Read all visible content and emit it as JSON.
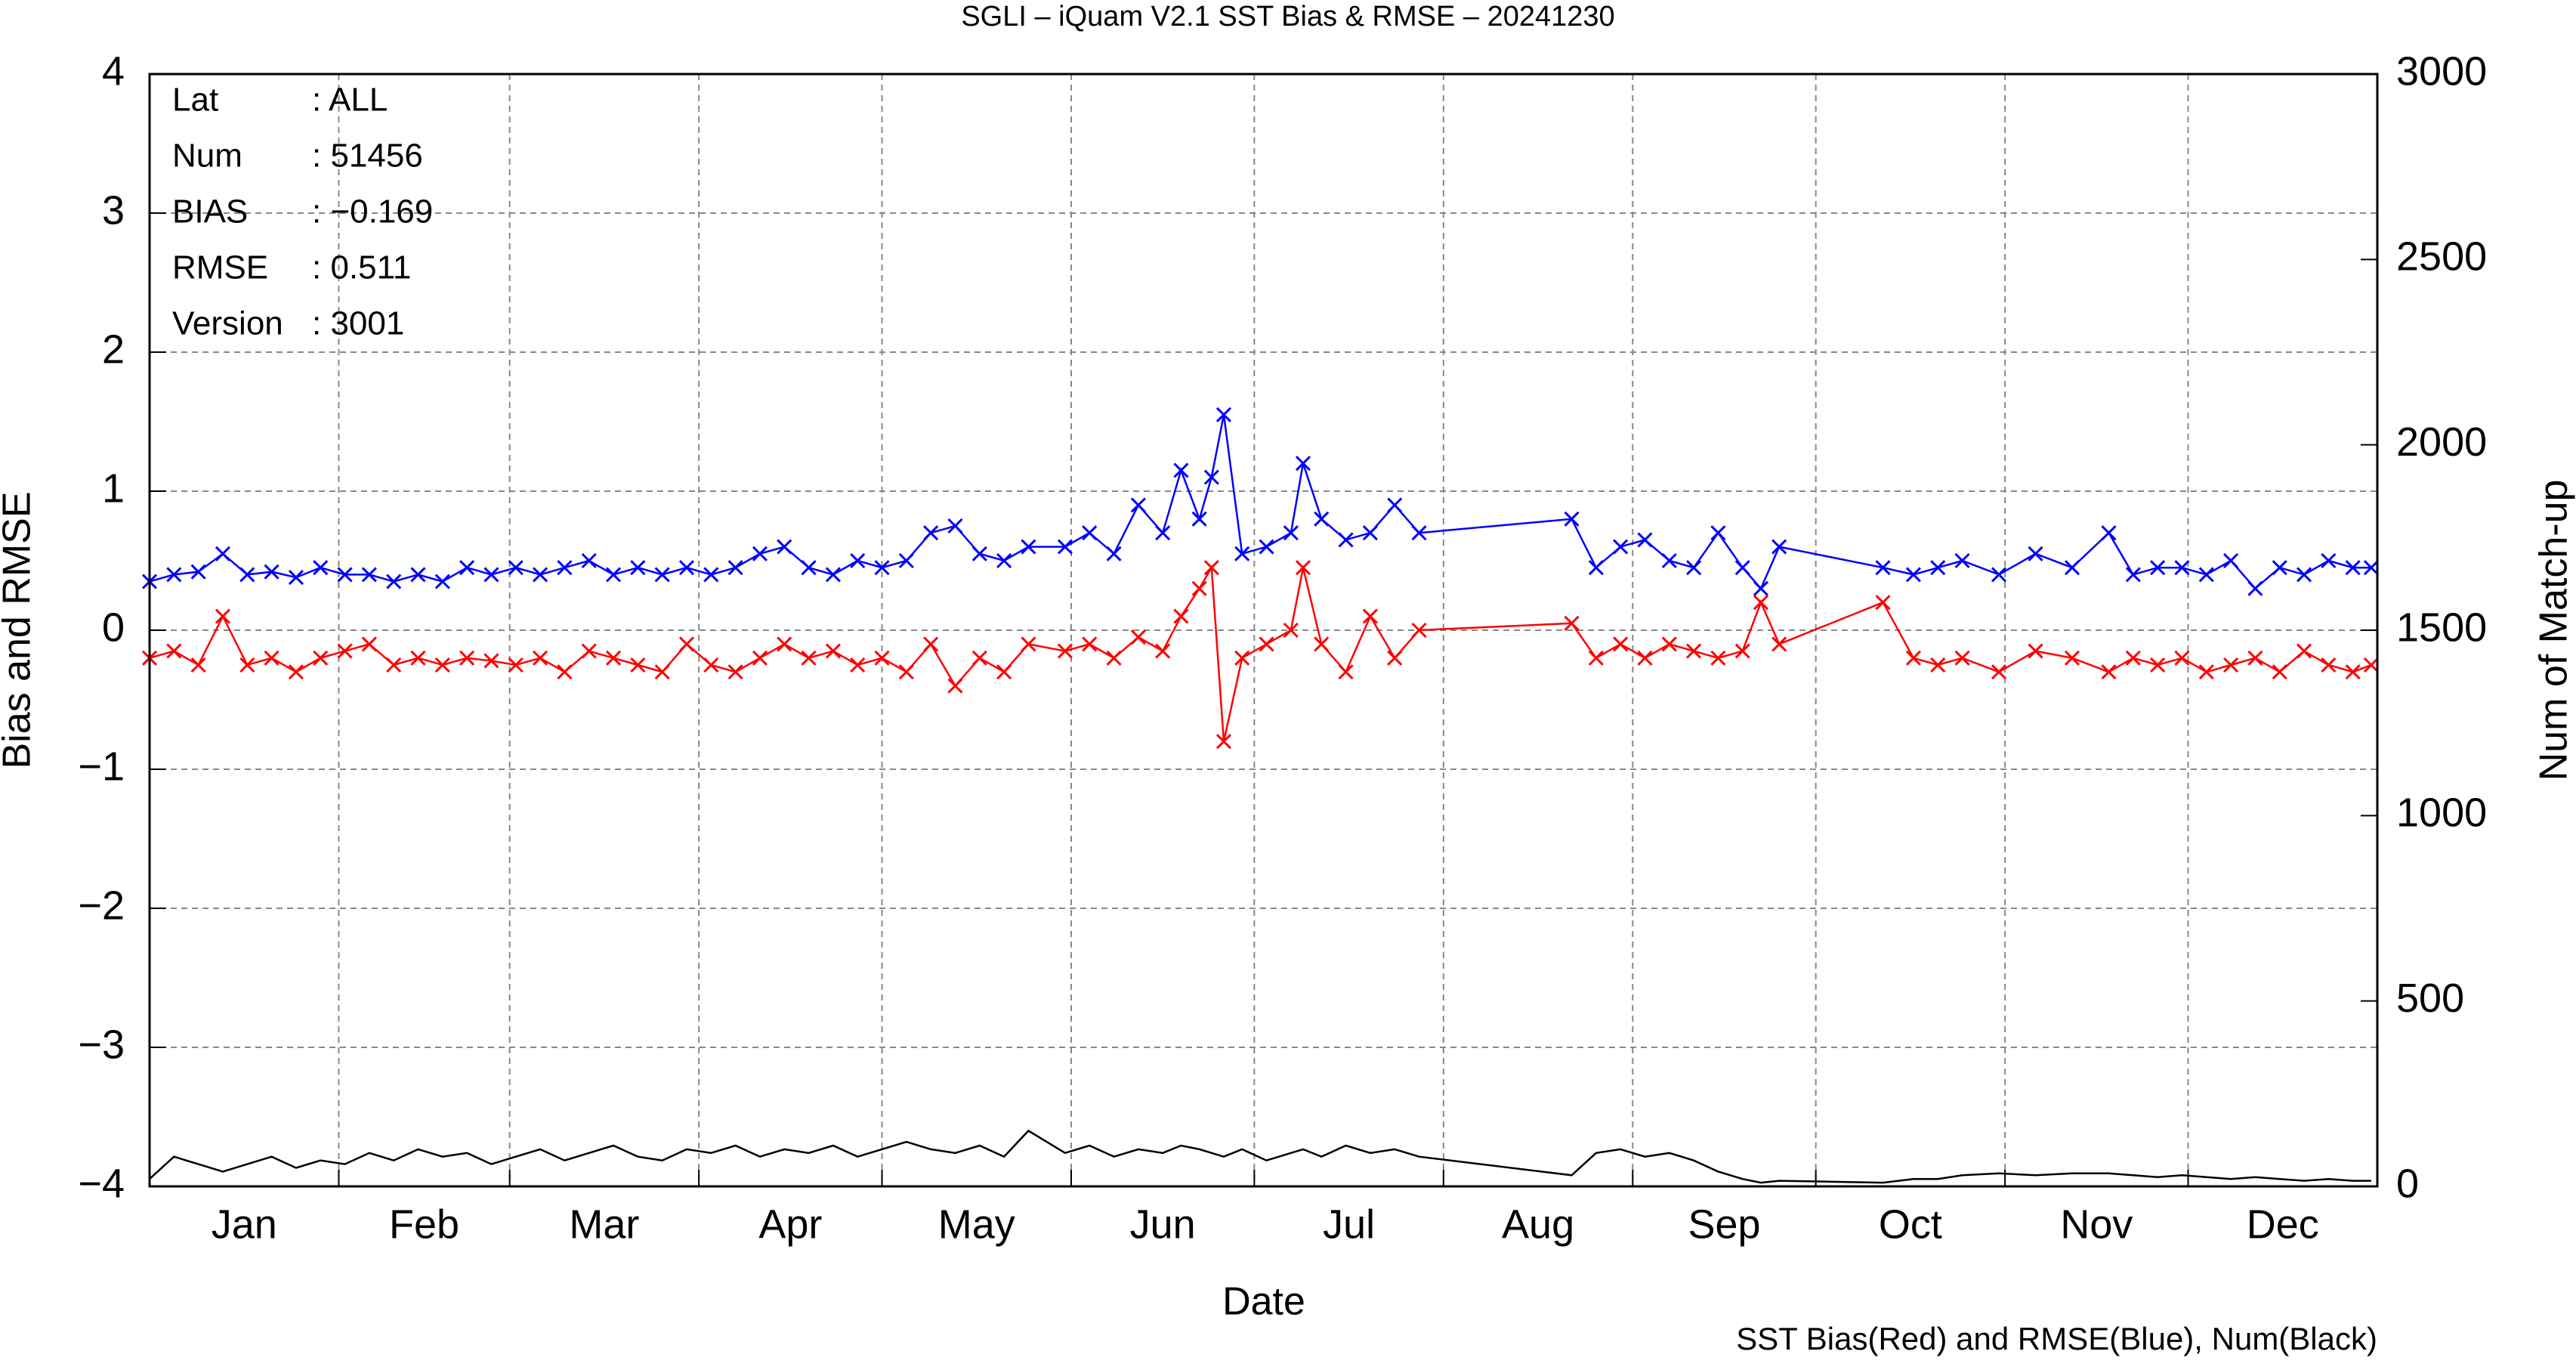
{
  "chart_data": {
    "type": "line",
    "title": "SGLI – iQuam V2.1 SST Bias & RMSE  – 20241230",
    "xlabel": "Date",
    "ylabel": "Bias and RMSE",
    "y2label": "Num of Match-up",
    "footnote": "SST Bias(Red) and RMSE(Blue), Num(Black)",
    "info": [
      [
        "Lat",
        ": ALL"
      ],
      [
        "Num",
        ": 51456"
      ],
      [
        "BIAS",
        ": −0.169"
      ],
      [
        "RMSE",
        ": 0.511"
      ],
      [
        "Version",
        ": 3001"
      ]
    ],
    "grid": true,
    "xlim": [
      1,
      366
    ],
    "xticks": [
      {
        "value": 1,
        "label": "Jan"
      },
      {
        "value": 32,
        "label": "Feb"
      },
      {
        "value": 60,
        "label": "Mar"
      },
      {
        "value": 91,
        "label": "Apr"
      },
      {
        "value": 121,
        "label": "May"
      },
      {
        "value": 152,
        "label": "Jun"
      },
      {
        "value": 182,
        "label": "Jul"
      },
      {
        "value": 213,
        "label": "Aug"
      },
      {
        "value": 244,
        "label": "Sep"
      },
      {
        "value": 274,
        "label": "Oct"
      },
      {
        "value": 305,
        "label": "Nov"
      },
      {
        "value": 335,
        "label": "Dec"
      }
    ],
    "ylim": [
      -4,
      4
    ],
    "yticks": [
      {
        "value": -4,
        "label": "−4"
      },
      {
        "value": -3,
        "label": "−3"
      },
      {
        "value": -2,
        "label": "−2"
      },
      {
        "value": -1,
        "label": "−1"
      },
      0,
      1,
      2,
      3,
      4
    ],
    "y2lim": [
      0,
      3000
    ],
    "y2ticks": [
      0,
      500,
      1000,
      1500,
      2000,
      2500,
      3000
    ],
    "x": [
      1,
      5,
      9,
      13,
      17,
      21,
      25,
      29,
      33,
      37,
      41,
      45,
      49,
      53,
      57,
      61,
      65,
      69,
      73,
      77,
      81,
      85,
      89,
      93,
      97,
      101,
      105,
      109,
      113,
      117,
      121,
      125,
      129,
      133,
      137,
      141,
      145,
      151,
      155,
      159,
      163,
      167,
      170,
      173,
      175,
      177,
      180,
      184,
      188,
      190,
      193,
      197,
      201,
      205,
      209,
      234,
      238,
      242,
      246,
      250,
      254,
      258,
      262,
      265,
      268,
      285,
      290,
      294,
      298,
      304,
      310,
      316,
      322,
      326,
      330,
      334,
      338,
      342,
      346,
      350,
      354,
      358,
      362,
      365
    ],
    "series": [
      {
        "color": "#ff0000",
        "marker": "x",
        "values": [
          -0.2,
          -0.15,
          -0.25,
          0.1,
          -0.25,
          -0.2,
          -0.3,
          -0.2,
          -0.15,
          -0.1,
          -0.25,
          -0.2,
          -0.25,
          -0.2,
          -0.22,
          -0.25,
          -0.2,
          -0.3,
          -0.15,
          -0.2,
          -0.25,
          -0.3,
          -0.1,
          -0.25,
          -0.3,
          -0.2,
          -0.1,
          -0.2,
          -0.15,
          -0.25,
          -0.2,
          -0.3,
          -0.1,
          -0.4,
          -0.2,
          -0.3,
          -0.1,
          -0.15,
          -0.1,
          -0.2,
          -0.05,
          -0.15,
          0.1,
          0.3,
          0.45,
          -0.8,
          -0.2,
          -0.1,
          0,
          0.45,
          -0.1,
          -0.3,
          0.1,
          -0.2,
          0,
          0.05,
          -0.2,
          -0.1,
          -0.2,
          -0.1,
          -0.15,
          -0.2,
          -0.15,
          0.2,
          -0.1,
          0.2,
          -0.2,
          -0.25,
          -0.2,
          -0.3,
          -0.15,
          -0.2,
          -0.3,
          -0.2,
          -0.25,
          -0.2,
          -0.3,
          -0.25,
          -0.2,
          -0.3,
          -0.15,
          -0.25,
          -0.3,
          -0.25
        ]
      },
      {
        "color": "#0000ff",
        "marker": "x",
        "values": [
          0.35,
          0.4,
          0.42,
          0.55,
          0.4,
          0.42,
          0.38,
          0.45,
          0.4,
          0.4,
          0.35,
          0.4,
          0.35,
          0.45,
          0.4,
          0.45,
          0.4,
          0.45,
          0.5,
          0.4,
          0.45,
          0.4,
          0.45,
          0.4,
          0.45,
          0.55,
          0.6,
          0.45,
          0.4,
          0.5,
          0.45,
          0.5,
          0.7,
          0.75,
          0.55,
          0.5,
          0.6,
          0.6,
          0.7,
          0.55,
          0.9,
          0.7,
          1.15,
          0.8,
          1.1,
          1.55,
          0.55,
          0.6,
          0.7,
          1.2,
          0.8,
          0.65,
          0.7,
          0.9,
          0.7,
          0.8,
          0.45,
          0.6,
          0.65,
          0.5,
          0.45,
          0.7,
          0.45,
          0.3,
          0.6,
          0.45,
          0.4,
          0.45,
          0.5,
          0.4,
          0.55,
          0.45,
          0.7,
          0.4,
          0.45,
          0.45,
          0.4,
          0.5,
          0.3,
          0.45,
          0.4,
          0.5,
          0.45,
          0.45
        ]
      },
      {
        "color": "#000000",
        "axis": "y2",
        "values": [
          20,
          80,
          60,
          40,
          60,
          80,
          50,
          70,
          60,
          90,
          70,
          100,
          80,
          90,
          60,
          80,
          100,
          70,
          90,
          110,
          80,
          70,
          100,
          90,
          110,
          80,
          100,
          90,
          110,
          80,
          100,
          120,
          100,
          90,
          110,
          80,
          150,
          90,
          110,
          80,
          100,
          90,
          110,
          100,
          90,
          80,
          100,
          70,
          90,
          100,
          80,
          110,
          90,
          100,
          80,
          30,
          90,
          100,
          80,
          90,
          70,
          40,
          20,
          10,
          15,
          10,
          20,
          20,
          30,
          35,
          30,
          35,
          35,
          30,
          25,
          30,
          25,
          20,
          25,
          20,
          15,
          20,
          15,
          15
        ]
      }
    ]
  }
}
